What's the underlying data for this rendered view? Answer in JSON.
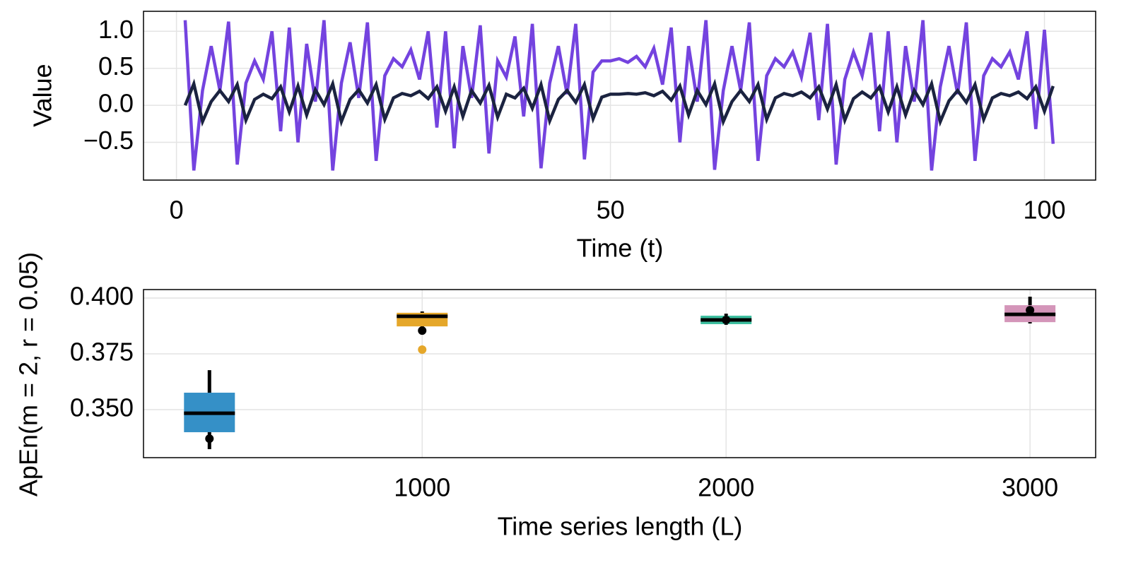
{
  "chart_data": [
    {
      "type": "line",
      "xlabel": "Time (t)",
      "ylabel": "Value",
      "x": [
        1,
        2,
        3,
        4,
        5,
        6,
        7,
        8,
        9,
        10,
        11,
        12,
        13,
        14,
        15,
        16,
        17,
        18,
        19,
        20,
        21,
        22,
        23,
        24,
        25,
        26,
        27,
        28,
        29,
        30,
        31,
        32,
        33,
        34,
        35,
        36,
        37,
        38,
        39,
        40,
        41,
        42,
        43,
        44,
        45,
        46,
        47,
        48,
        49,
        50,
        51,
        52,
        53,
        54,
        55,
        56,
        57,
        58,
        59,
        60,
        61,
        62,
        63,
        64,
        65,
        66,
        67,
        68,
        69,
        70,
        71,
        72,
        73,
        74,
        75,
        76,
        77,
        78,
        79,
        80,
        81,
        82,
        83,
        84,
        85,
        86,
        87,
        88,
        89,
        90,
        91,
        92,
        93,
        94,
        95,
        96,
        97,
        98,
        99,
        100,
        101
      ],
      "series": [
        {
          "color": "#7443df",
          "values": [
            1.15,
            -0.88,
            0.2,
            0.8,
            0.2,
            1.13,
            -0.8,
            0.3,
            0.6,
            0.35,
            1.0,
            -0.35,
            1.05,
            -0.5,
            0.83,
            0.05,
            1.15,
            -0.88,
            0.3,
            0.85,
            0.1,
            1.12,
            -0.75,
            0.4,
            0.63,
            0.52,
            0.75,
            0.35,
            1.0,
            -0.3,
            1.0,
            -0.58,
            0.8,
            0.1,
            1.08,
            -0.65,
            0.6,
            0.38,
            0.93,
            -0.15,
            1.1,
            -0.85,
            0.3,
            0.8,
            0.15,
            1.1,
            -0.73,
            0.45,
            0.6,
            0.6,
            0.63,
            0.58,
            0.66,
            0.52,
            0.77,
            0.28,
            1.05,
            -0.5,
            0.8,
            0.05,
            1.15,
            -0.87,
            0.2,
            0.8,
            0.2,
            1.12,
            -0.75,
            0.4,
            0.63,
            0.52,
            0.72,
            0.38,
            0.98,
            -0.2,
            1.1,
            -0.8,
            0.35,
            0.72,
            0.4,
            0.98,
            -0.35,
            1.0,
            -0.5,
            0.8,
            0.05,
            1.15,
            -0.88,
            0.25,
            0.8,
            0.15,
            1.12,
            -0.75,
            0.4,
            0.63,
            0.52,
            0.72,
            0.35,
            1.0,
            -0.32,
            1.02,
            -0.52
          ]
        },
        {
          "color": "#1b2340",
          "values": [
            0,
            0.29,
            -0.22,
            0.05,
            0.2,
            0.05,
            0.28,
            -0.2,
            0.08,
            0.15,
            0.09,
            0.25,
            -0.09,
            0.26,
            -0.13,
            0.21,
            0.01,
            0.29,
            -0.22,
            0.08,
            0.21,
            0.03,
            0.28,
            -0.19,
            0.1,
            0.16,
            0.13,
            0.19,
            0.09,
            0.25,
            -0.08,
            0.25,
            -0.15,
            0.2,
            0.03,
            0.27,
            -0.16,
            0.15,
            0.1,
            0.23,
            -0.04,
            0.28,
            -0.21,
            0.08,
            0.2,
            0.04,
            0.28,
            -0.18,
            0.11,
            0.15,
            0.15,
            0.16,
            0.15,
            0.17,
            0.13,
            0.19,
            0.07,
            0.26,
            -0.13,
            0.2,
            0.01,
            0.29,
            -0.22,
            0.05,
            0.2,
            0.05,
            0.28,
            -0.19,
            0.1,
            0.16,
            0.13,
            0.18,
            0.1,
            0.25,
            -0.05,
            0.28,
            -0.2,
            0.09,
            0.18,
            0.1,
            0.25,
            -0.09,
            0.25,
            -0.13,
            0.2,
            0.01,
            0.29,
            -0.22,
            0.06,
            0.2,
            0.04,
            0.28,
            -0.19,
            0.1,
            0.16,
            0.13,
            0.18,
            0.09,
            0.25,
            -0.08,
            0.26
          ]
        }
      ],
      "xlim": [
        -3.8,
        105.9
      ],
      "xticks": [
        0,
        50,
        100
      ],
      "ylim": [
        -1.01,
        1.27
      ],
      "yticks": [
        {
          "value": 1,
          "label": "1.0"
        },
        0.5,
        {
          "value": 0,
          "label": "0.0"
        },
        {
          "value": -0.5,
          "label": "−0.5"
        }
      ],
      "grid": true
    },
    {
      "type": "box",
      "xlabel": "Time series length (L)",
      "ylabel": "ApEn(m = 2, r = 0.05)",
      "x": [
        300,
        1000,
        2000,
        3000
      ],
      "colors": [
        "#3590c7",
        "#e5a72a",
        "#3ebfa0",
        "#d495b9"
      ],
      "min": [
        0.3323,
        0.3865,
        0.388,
        0.3886
      ],
      "q1": [
        0.3399,
        0.3873,
        0.3883,
        0.3892
      ],
      "median": [
        0.3484,
        0.3918,
        0.3902,
        0.3927
      ],
      "q3": [
        0.3576,
        0.3934,
        0.3921,
        0.3968
      ],
      "max": [
        0.3677,
        0.394,
        0.393,
        0.4006
      ],
      "mean": [
        0.337,
        0.3854,
        0.3902,
        0.3946
      ],
      "outliers": [
        [],
        [
          0.3769
        ],
        [],
        []
      ],
      "xlim": [
        83,
        3216
      ],
      "xticks": [
        1000,
        2000,
        3000
      ],
      "ylim": [
        0.3285,
        0.4038
      ],
      "yticks": [
        {
          "value": 0.4,
          "label": "0.400"
        },
        0.375,
        {
          "value": 0.35,
          "label": "0.350"
        }
      ],
      "grid": true
    }
  ]
}
